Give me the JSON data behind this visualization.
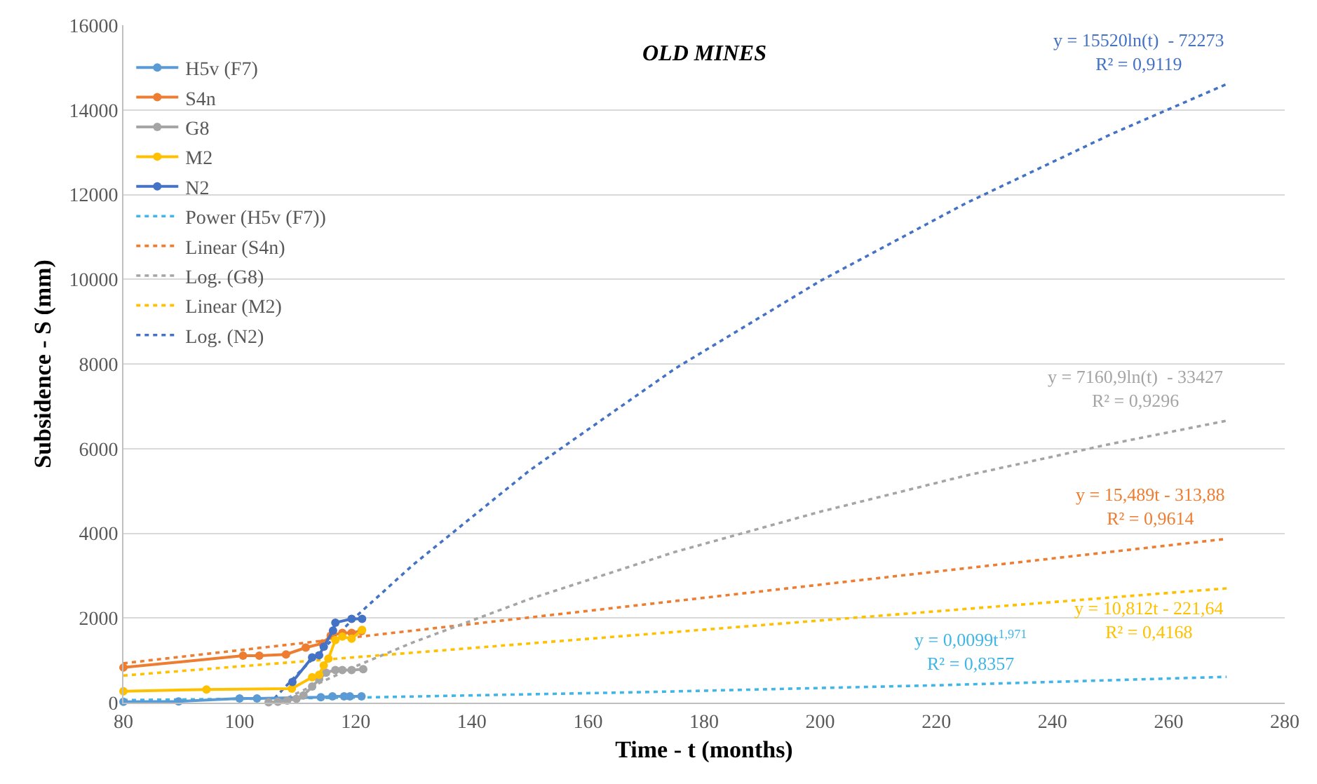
{
  "chart_data": {
    "type": "line",
    "title": "OLD MINES",
    "xlabel": "Time - t (months)",
    "ylabel": "Subsidence - S (mm)",
    "xlim": [
      80,
      280
    ],
    "xticks": [
      80,
      100,
      120,
      140,
      160,
      180,
      200,
      220,
      240,
      260,
      280
    ],
    "ylim": [
      0,
      16000
    ],
    "yticks": [
      0,
      2000,
      4000,
      6000,
      8000,
      10000,
      12000,
      14000,
      16000
    ],
    "grid": "y",
    "legend": "top left",
    "series": [
      {
        "name": "H5v (F7)",
        "color": "#5b9bd5",
        "marker": "circle",
        "line_style": "solid",
        "x": [
          80,
          89.5,
          100,
          103,
          114,
          116,
          118,
          119,
          121
        ],
        "values": [
          20,
          30,
          100,
          100,
          130,
          150,
          150,
          150,
          150
        ]
      },
      {
        "name": "S4n",
        "color": "#ed7d31",
        "marker": "circle",
        "line_style": "solid",
        "x": [
          80,
          100.6,
          103.4,
          108,
          111.4,
          114.3,
          115.7,
          117.7,
          119.3,
          121
        ],
        "values": [
          830,
          1110,
          1110,
          1140,
          1300,
          1400,
          1580,
          1650,
          1650,
          1690
        ]
      },
      {
        "name": "G8",
        "color": "#a5a5a5",
        "marker": "circle",
        "line_style": "solid",
        "x": [
          105,
          106.6,
          108.2,
          109.8,
          111,
          112.5,
          113.7,
          114.9,
          116.5,
          117.7,
          119.3,
          121.3
        ],
        "values": [
          10,
          20,
          50,
          90,
          170,
          380,
          550,
          710,
          770,
          770,
          770,
          790
        ]
      },
      {
        "name": "M2",
        "color": "#ffc000",
        "marker": "circle",
        "line_style": "solid",
        "x": [
          80,
          94.3,
          109,
          112.5,
          113.7,
          114.5,
          115.3,
          116.5,
          117.7,
          119.3,
          121.1
        ],
        "values": [
          270,
          310,
          330,
          600,
          660,
          880,
          1040,
          1480,
          1560,
          1510,
          1720
        ]
      },
      {
        "name": "N2",
        "color": "#4472c4",
        "marker": "circle",
        "line_style": "solid",
        "x": [
          109.1,
          112.5,
          113.7,
          114.5,
          116.1,
          116.5,
          119.3,
          121.1
        ],
        "values": [
          490,
          1070,
          1120,
          1320,
          1700,
          1890,
          1980,
          1980
        ]
      },
      {
        "name": "Power (H5v (F7))",
        "color": "#41b6e6",
        "marker": "none",
        "line_style": "dotted",
        "x": [
          80,
          120,
          170,
          220,
          270
        ],
        "values": [
          60,
          120,
          250,
          410,
          610
        ]
      },
      {
        "name": "Linear (S4n)",
        "color": "#ed7d31",
        "marker": "none",
        "line_style": "dotted",
        "x": [
          80,
          270
        ],
        "values": [
          930,
          3870
        ]
      },
      {
        "name": "Log. (G8)",
        "color": "#a5a5a5",
        "marker": "none",
        "line_style": "dotted",
        "x": [
          107,
          110,
          120,
          130,
          150,
          175,
          200,
          225,
          250,
          270
        ],
        "values": [
          30,
          230,
          860,
          1430,
          2450,
          3560,
          4510,
          5360,
          6110,
          6660
        ]
      },
      {
        "name": "Linear (M2)",
        "color": "#ffc000",
        "marker": "none",
        "line_style": "dotted",
        "x": [
          80,
          270
        ],
        "values": [
          640,
          2700
        ]
      },
      {
        "name": "Log. (N2)",
        "color": "#4472c4",
        "marker": "none",
        "line_style": "dotted",
        "x": [
          106,
          110,
          120,
          130,
          150,
          175,
          200,
          225,
          250,
          270
        ],
        "values": [
          100,
          680,
          2030,
          3270,
          5490,
          7890,
          9960,
          11790,
          13420,
          14610
        ]
      }
    ],
    "annotations": [
      "y = 0,0099t$^{1,971}$\nR² = 0,8357",
      "y = 15,489t - 313,88\nR² = 0,9614",
      "y = 7160,9ln(t)  - 33427\nR² = 0,9296",
      "y = 10,812t - 221,64\nR² = 0,4168",
      "y = 15520ln(t)  - 72273\nR² = 0,9119"
    ]
  }
}
